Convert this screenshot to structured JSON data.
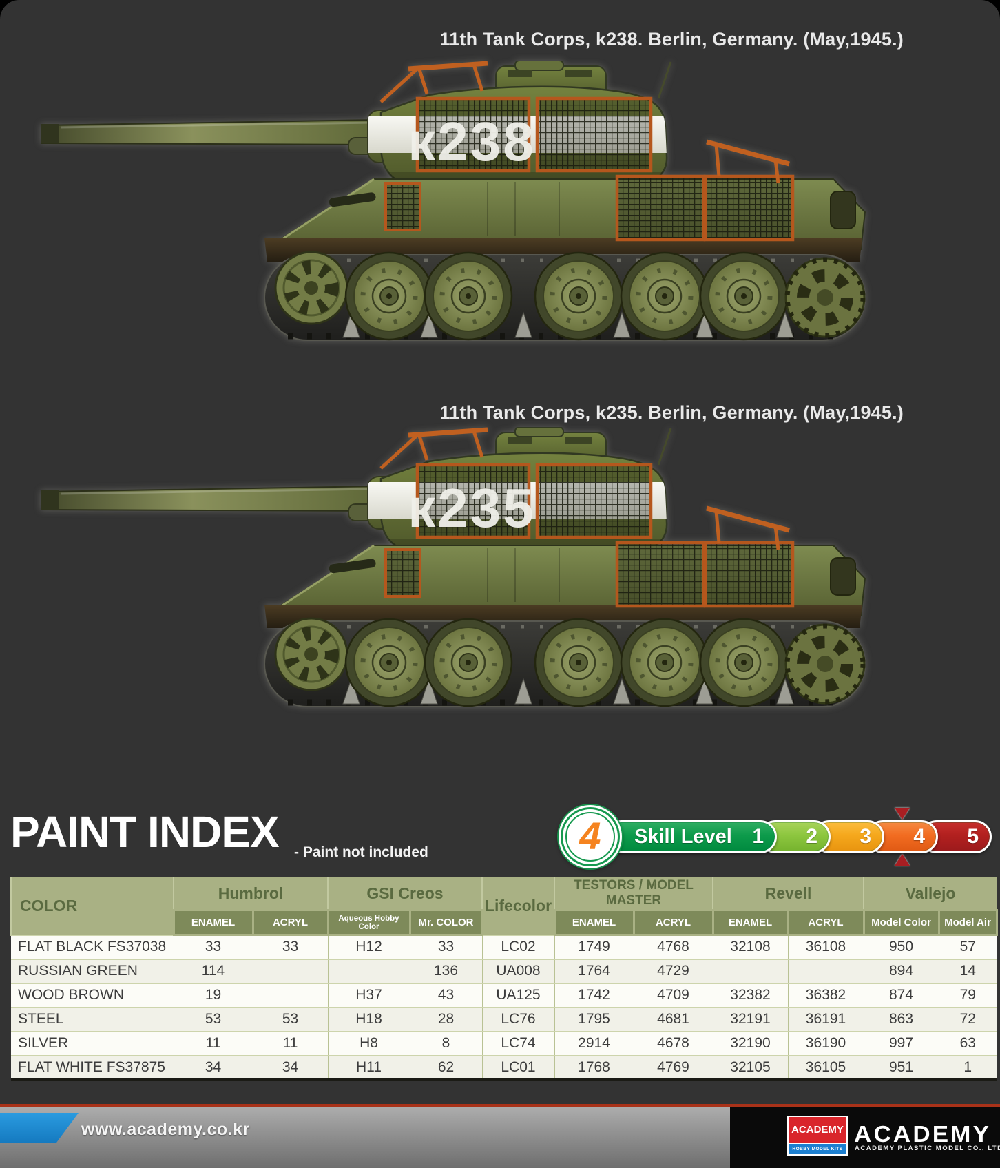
{
  "captions": [
    "11th Tank Corps, k238. Berlin, Germany. (May,1945.)",
    "11th Tank Corps, k235. Berlin, Germany. (May,1945.)"
  ],
  "tanks": [
    {
      "turret_number": "к238"
    },
    {
      "turret_number": "к235"
    }
  ],
  "paint_index": {
    "title": "PAINT INDEX",
    "note": "- Paint not included",
    "skill": {
      "label": "Skill Level",
      "current": "4",
      "levels": [
        "1",
        "2",
        "3",
        "4",
        "5"
      ],
      "selected": "4"
    }
  },
  "paint_table": {
    "color_header": "COLOR",
    "groups": [
      {
        "label": "Humbrol",
        "subs": [
          "ENAMEL",
          "ACRYL"
        ]
      },
      {
        "label": "GSI Creos",
        "subs": [
          "Aqueous Hobby Color",
          "Mr. COLOR"
        ]
      },
      {
        "label": "Lifecolor",
        "subs": []
      },
      {
        "label": "TESTORS / MODEL MASTER",
        "subs": [
          "ENAMEL",
          "ACRYL"
        ]
      },
      {
        "label": "Revell",
        "subs": [
          "ENAMEL",
          "ACRYL"
        ]
      },
      {
        "label": "Vallejo",
        "subs": [
          "Model Color",
          "Model Air"
        ]
      }
    ],
    "rows": [
      {
        "color": "FLAT BLACK  FS37038",
        "values": [
          "33",
          "33",
          "H12",
          "33",
          "LC02",
          "1749",
          "4768",
          "32108",
          "36108",
          "950",
          "57"
        ]
      },
      {
        "color": "RUSSIAN GREEN",
        "values": [
          "114",
          "",
          "",
          "136",
          "UA008",
          "1764",
          "4729",
          "",
          "",
          "894",
          "14"
        ]
      },
      {
        "color": "WOOD BROWN",
        "values": [
          "19",
          "",
          "H37",
          "43",
          "UA125",
          "1742",
          "4709",
          "32382",
          "36382",
          "874",
          "79"
        ]
      },
      {
        "color": "STEEL",
        "values": [
          "53",
          "53",
          "H18",
          "28",
          "LC76",
          "1795",
          "4681",
          "32191",
          "36191",
          "863",
          "72"
        ]
      },
      {
        "color": "SILVER",
        "values": [
          "11",
          "11",
          "H8",
          "8",
          "LC74",
          "2914",
          "4678",
          "32190",
          "36190",
          "997",
          "63"
        ]
      },
      {
        "color": "FLAT WHITE  FS37875",
        "values": [
          "34",
          "34",
          "H11",
          "62",
          "LC01",
          "1768",
          "4769",
          "32105",
          "36105",
          "951",
          "1"
        ]
      }
    ]
  },
  "footer": {
    "url": "www.academy.co.kr",
    "logo_small_top": "ACADEMY",
    "logo_small_bottom": "HOBBY MODEL KITS",
    "wordmark": "ACADEMY",
    "company": "ACADEMY PLASTIC MODEL CO., LTD."
  },
  "colors": {
    "page_bg": "#333333",
    "table_header_bg": "#a9b184",
    "table_subheader_bg": "#7e8a5a",
    "table_header_text": "#5a6a40",
    "skill_seg1": "#0d9b4b",
    "skill_seg2": "#8dc63f",
    "skill_seg3": "#f5a81c",
    "skill_seg4": "#f26c21",
    "skill_seg5": "#b2201f",
    "skill_number": "#f5831f",
    "marker_red": "#a81e22",
    "footer_red_line": "#a93219",
    "footer_blue": "#1f8ed6",
    "logo_red": "#d9252b",
    "logo_blue": "#1c7fd0",
    "mesh_frame_orange": "#b5571d",
    "tank_green": "#6c7a40",
    "turret_band_white": "#efefe8"
  }
}
